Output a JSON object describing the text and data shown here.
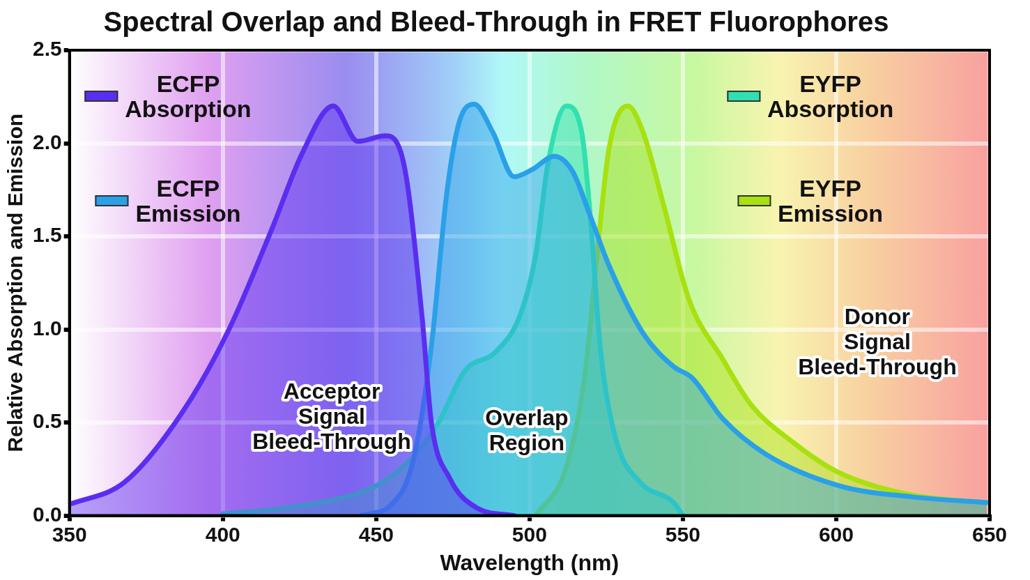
{
  "chart_data": {
    "type": "area",
    "title": "Spectral Overlap and Bleed-Through in FRET Fluorophores",
    "xlabel": "Wavelength (nm)",
    "ylabel": "Relative Absorption and Emission",
    "xlim": [
      350,
      650
    ],
    "xticks": [
      350,
      400,
      450,
      500,
      550,
      600,
      650
    ],
    "ylim": [
      0,
      2.5
    ],
    "yticks": [
      {
        "value": 0,
        "label": "0.0"
      },
      {
        "value": 0.5,
        "label": "0.5"
      },
      {
        "value": 1,
        "label": "1.0"
      },
      {
        "value": 1.5,
        "label": "1.5"
      },
      {
        "value": 2,
        "label": "2.0"
      },
      {
        "value": 2.5,
        "label": "2.5"
      }
    ],
    "grid": true,
    "legend": "top",
    "marker": "none",
    "line_style": "solid",
    "series": [
      {
        "name": "ECFP Absorption",
        "color": "#5a2ef0",
        "x": [
          350,
          368,
          387,
          402,
          416,
          426,
          436,
          444,
          453,
          459,
          465,
          468,
          474,
          483,
          495
        ],
        "values": [
          0.06,
          0.18,
          0.56,
          1.0,
          1.54,
          1.95,
          2.2,
          2.01,
          2.04,
          1.89,
          1.06,
          0.5,
          0.2,
          0.04,
          0
        ]
      },
      {
        "name": "ECFP Emission",
        "color": "#2aa0e8",
        "x": [
          445,
          455,
          462,
          468,
          473,
          477,
          482,
          488,
          495,
          501,
          508,
          514,
          520,
          526,
          537,
          547,
          553,
          563,
          577,
          601,
          625,
          649
        ],
        "values": [
          0,
          0.06,
          0.29,
          0.91,
          1.73,
          2.11,
          2.21,
          2.06,
          1.82,
          1.86,
          1.93,
          1.85,
          1.6,
          1.34,
          0.98,
          0.8,
          0.74,
          0.52,
          0.33,
          0.16,
          0.1,
          0.07
        ]
      },
      {
        "name": "EYFP Absorption",
        "color": "#30e0b0",
        "x": [
          400,
          420,
          440,
          450,
          460,
          470,
          479,
          489,
          497,
          502,
          506,
          512,
          517,
          520,
          523,
          528,
          536,
          547,
          550
        ],
        "values": [
          0.01,
          0.04,
          0.1,
          0.16,
          0.28,
          0.49,
          0.78,
          0.88,
          1.08,
          1.4,
          1.89,
          2.2,
          2.06,
          1.57,
          0.91,
          0.42,
          0.18,
          0.07,
          0
        ]
      },
      {
        "name": "EYFP Emission",
        "color": "#a8e010",
        "x": [
          502,
          512,
          518,
          522,
          526,
          532,
          537,
          544,
          552,
          563,
          572,
          587,
          601,
          625,
          649
        ],
        "values": [
          0,
          0.26,
          0.75,
          1.4,
          1.98,
          2.2,
          2.06,
          1.65,
          1.16,
          0.84,
          0.6,
          0.38,
          0.23,
          0.11,
          0.07
        ]
      }
    ],
    "annotations": [
      "Acceptor Signal Bleed-Through",
      "Overlap Region",
      "Donor Signal Bleed-Through"
    ]
  }
}
